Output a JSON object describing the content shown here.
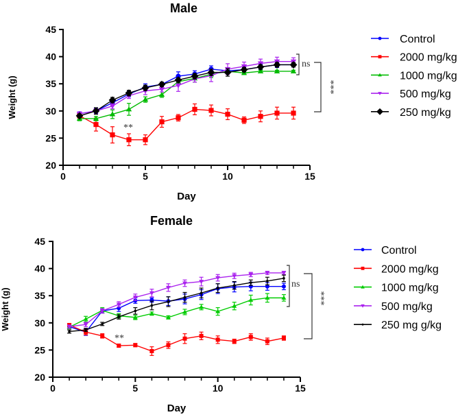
{
  "chart_data": [
    {
      "type": "line",
      "title": "Male",
      "xlabel": "Day",
      "ylabel": "Weight (g)",
      "xlim": [
        0,
        15
      ],
      "ylim": [
        20,
        45
      ],
      "xticks": [
        "0",
        "5",
        "10",
        "15"
      ],
      "yticks": [
        "20",
        "25",
        "30",
        "35",
        "40",
        "45"
      ],
      "grid": false,
      "legend_position": "right",
      "x": [
        1,
        2,
        3,
        4,
        5,
        6,
        7,
        8,
        9,
        10,
        11,
        12,
        13,
        14
      ],
      "series": [
        {
          "name": "Control",
          "color": "#0000ff",
          "marker": "circle",
          "values": [
            29.5,
            30.0,
            31.5,
            33.1,
            34.4,
            34.9,
            36.4,
            36.8,
            37.7,
            37.4,
            37.6,
            38.1,
            38.5,
            38.5
          ],
          "error": [
            0.3,
            0.5,
            0.5,
            0.5,
            0.6,
            0.4,
            0.8,
            0.6,
            0.6,
            0.5,
            0.5,
            0.5,
            0.5,
            0.4
          ]
        },
        {
          "name": "2000 mg/kg",
          "color": "#ff0000",
          "marker": "square",
          "values": [
            29.1,
            27.5,
            25.6,
            24.7,
            24.7,
            28.0,
            28.75,
            30.3,
            30.1,
            29.4,
            28.3,
            29.0,
            29.6,
            29.6
          ],
          "error": [
            0.3,
            1.2,
            1.5,
            1.1,
            0.9,
            1.0,
            0.6,
            1.0,
            1.0,
            1.0,
            0.6,
            1.0,
            1.1,
            1.1
          ]
        },
        {
          "name": "1000 mg/kg",
          "color": "#00bb00",
          "marker": "triangle",
          "values": [
            28.6,
            28.6,
            29.4,
            30.3,
            32.1,
            33.0,
            35.4,
            36.0,
            36.75,
            37.3,
            37.0,
            37.3,
            37.3,
            37.3
          ],
          "error": [
            0.4,
            0.4,
            0.8,
            1.1,
            0.5,
            0.5,
            0.4,
            0.7,
            0.6,
            0.3,
            0.3,
            0.2,
            0.2,
            0.2
          ]
        },
        {
          "name": "500 mg/kg",
          "color": "#aa22ee",
          "marker": "inverted-triangle",
          "values": [
            29.5,
            30.0,
            30.9,
            32.8,
            33.7,
            34.0,
            34.7,
            35.9,
            36.5,
            37.7,
            38.2,
            38.75,
            39.1,
            39.1
          ],
          "error": [
            0.3,
            0.4,
            0.5,
            0.5,
            0.7,
            0.5,
            1.1,
            0.6,
            1.1,
            1.0,
            0.8,
            0.8,
            0.8,
            0.7
          ]
        },
        {
          "name": "250 mg/kg",
          "color": "#000000",
          "marker": "diamond",
          "values": [
            29.1,
            30.0,
            32.0,
            33.3,
            34.25,
            34.9,
            35.7,
            36.4,
            37.1,
            37.1,
            37.6,
            38.1,
            38.5,
            38.5
          ],
          "error": [
            0.3,
            0.6,
            0.5,
            0.5,
            0.5,
            0.4,
            0.4,
            0.5,
            0.6,
            0.7,
            0.4,
            0.4,
            0.4,
            0.4
          ]
        }
      ],
      "annotations": {
        "low_dose_marker": "**",
        "ns": "ns",
        "significance": "***"
      }
    },
    {
      "type": "line",
      "title": "Female",
      "xlabel": "Day",
      "ylabel": "Weight (g)",
      "xlim": [
        0,
        15
      ],
      "ylim": [
        20,
        45
      ],
      "xticks": [
        "0",
        "5",
        "10",
        "15"
      ],
      "yticks": [
        "20",
        "25",
        "30",
        "35",
        "40",
        "45"
      ],
      "grid": false,
      "legend_position": "right",
      "x": [
        1,
        2,
        3,
        4,
        5,
        6,
        7,
        8,
        9,
        10,
        11,
        12,
        13,
        14
      ],
      "series": [
        {
          "name": "Control",
          "color": "#0000ff",
          "marker": "circle",
          "values": [
            29.3,
            28.3,
            32.2,
            32.7,
            34.1,
            34.2,
            34.0,
            34.4,
            35.2,
            36.3,
            36.6,
            36.7,
            36.7,
            36.7
          ],
          "error": [
            0.3,
            0.6,
            0.4,
            0.6,
            0.5,
            0.4,
            0.8,
            0.9,
            0.9,
            0.9,
            0.9,
            0.8,
            0.7,
            0.6
          ]
        },
        {
          "name": "2000 mg/kg",
          "color": "#ff0000",
          "marker": "square",
          "values": [
            29.6,
            28.3,
            27.6,
            25.8,
            25.9,
            24.8,
            25.9,
            27.1,
            27.6,
            26.9,
            26.6,
            27.4,
            26.6,
            27.2
          ],
          "error": [
            0.3,
            0.5,
            0.4,
            0.3,
            0.3,
            0.8,
            0.6,
            0.9,
            0.7,
            0.7,
            0.4,
            0.6,
            0.6,
            0.4
          ]
        },
        {
          "name": "1000 mg/kg",
          "color": "#00cc00",
          "marker": "triangle",
          "values": [
            29.2,
            30.7,
            32.3,
            31.3,
            31.0,
            31.7,
            31.0,
            32.0,
            32.9,
            32.1,
            33.1,
            34.2,
            34.6,
            34.6
          ],
          "error": [
            0.3,
            0.5,
            0.5,
            0.4,
            0.4,
            0.3,
            0.3,
            0.5,
            0.5,
            0.7,
            0.7,
            0.9,
            0.8,
            0.6
          ]
        },
        {
          "name": "500 mg/kg",
          "color": "#aa22ee",
          "marker": "inverted-triangle",
          "values": [
            29.3,
            29.7,
            32.2,
            33.4,
            34.7,
            35.5,
            36.5,
            37.3,
            37.6,
            38.3,
            38.65,
            38.9,
            39.2,
            39.2
          ],
          "error": [
            0.3,
            0.4,
            0.4,
            0.5,
            0.6,
            0.7,
            0.7,
            0.6,
            0.8,
            0.6,
            0.5,
            0.4,
            0.3,
            0.3
          ]
        },
        {
          "name": "250 mg g/kg",
          "color": "#000000",
          "marker": "dot",
          "values": [
            28.4,
            28.7,
            29.8,
            31.1,
            32.2,
            33.2,
            33.9,
            34.7,
            35.5,
            36.4,
            36.9,
            37.4,
            37.7,
            38.2
          ],
          "error": [
            0.3,
            0.3,
            0.3,
            0.4,
            0.6,
            0.8,
            0.9,
            0.9,
            0.9,
            0.8,
            0.7,
            0.5,
            0.7,
            0.6
          ]
        }
      ],
      "annotations": {
        "low_dose_marker": "**",
        "ns": "ns",
        "significance": "***"
      }
    }
  ]
}
